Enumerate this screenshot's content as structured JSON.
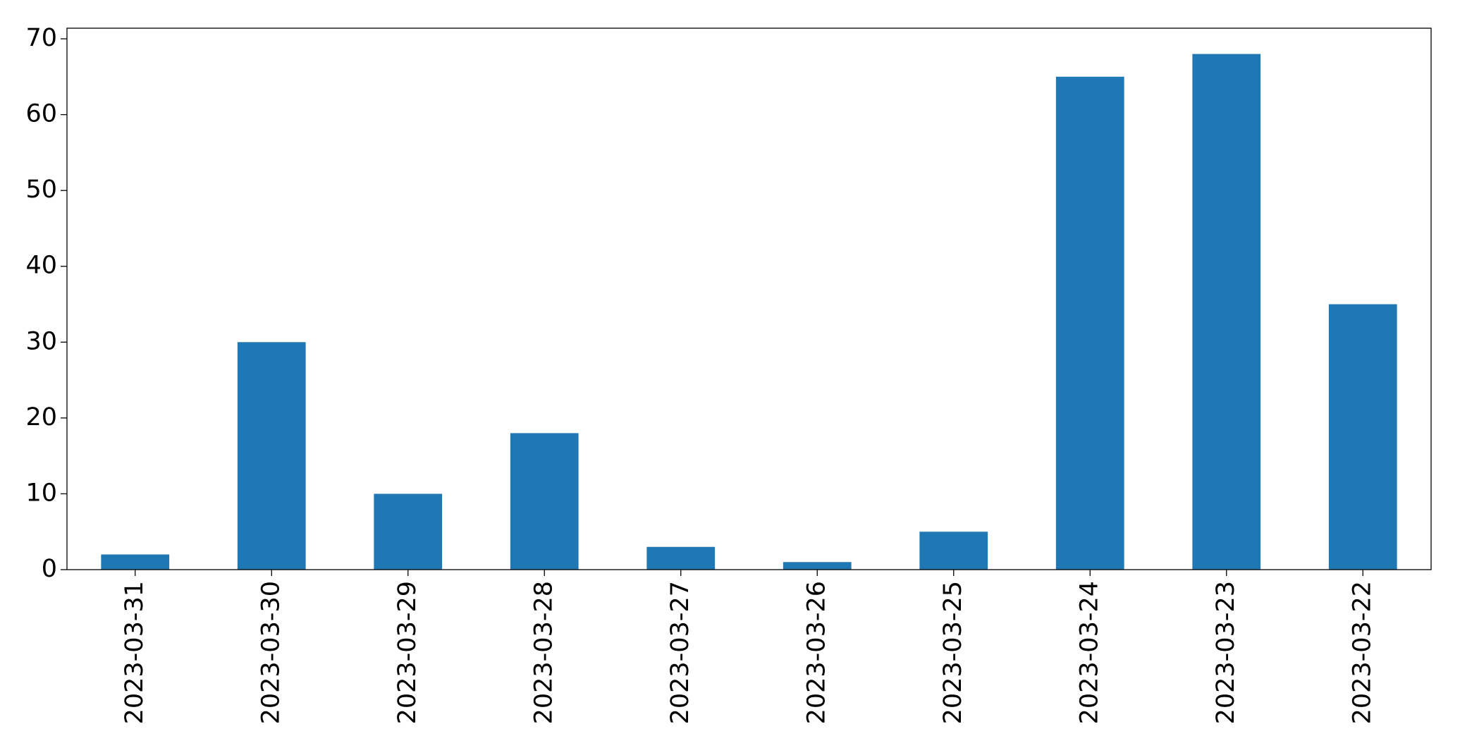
{
  "chart_data": {
    "type": "bar",
    "categories": [
      "2023-03-31",
      "2023-03-30",
      "2023-03-29",
      "2023-03-28",
      "2023-03-27",
      "2023-03-26",
      "2023-03-25",
      "2023-03-24",
      "2023-03-23",
      "2023-03-22"
    ],
    "values": [
      2,
      30,
      10,
      18,
      3,
      1,
      5,
      65,
      68,
      35
    ],
    "color": "#1f77b4",
    "ylim": [
      0,
      71.4
    ],
    "yticks": [
      0,
      10,
      20,
      30,
      40,
      50,
      60,
      70
    ],
    "grid": false
  }
}
